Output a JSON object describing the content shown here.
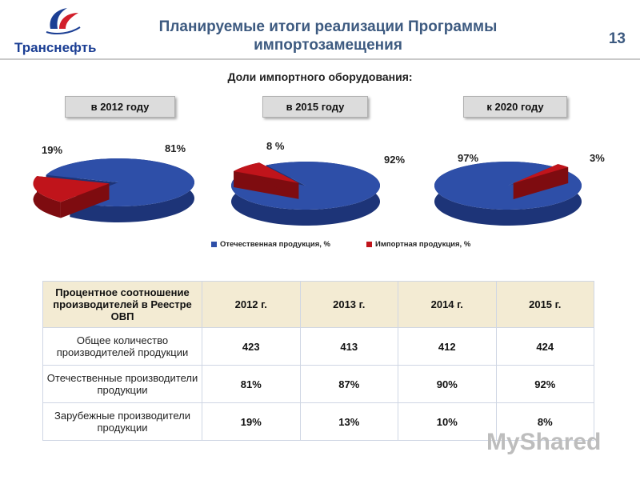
{
  "header": {
    "logo_text": "Транснефть",
    "title": "Планируемые итоги реализации Программы импортозамещения",
    "page_number": "13"
  },
  "subtitle": "Доли импортного оборудования:",
  "colors": {
    "domestic": "#2e4fa8",
    "import": "#c0141b"
  },
  "chart_data": [
    {
      "type": "pie",
      "title": "в 2012 году",
      "labels": [
        "Отечественная продукция, %",
        "Импортная продукция, %"
      ],
      "values": [
        81,
        19
      ],
      "data_labels": [
        "81%",
        "19%"
      ]
    },
    {
      "type": "pie",
      "title": "в 2015 году",
      "labels": [
        "Отечественная продукция, %",
        "Импортная продукция, %"
      ],
      "values": [
        92,
        8
      ],
      "data_labels": [
        "92%",
        "8 %"
      ]
    },
    {
      "type": "pie",
      "title": "к 2020 году",
      "labels": [
        "Отечественная продукция, %",
        "Импортная продукция, %"
      ],
      "values": [
        97,
        3
      ],
      "data_labels": [
        "97%",
        "3%"
      ]
    }
  ],
  "legend": [
    "Отечественная продукция, %",
    "Импортная продукция, %"
  ],
  "table": {
    "header": [
      "Процентное соотношение производителей в Реестре ОВП",
      "2012 г.",
      "2013 г.",
      "2014 г.",
      "2015 г."
    ],
    "rows": [
      {
        "label": "Общее количество производителей продукции",
        "values": [
          "423",
          "413",
          "412",
          "424"
        ]
      },
      {
        "label": "Отечественные производители продукции",
        "values": [
          "81%",
          "87%",
          "90%",
          "92%"
        ]
      },
      {
        "label": "Зарубежные производители продукции",
        "values": [
          "19%",
          "13%",
          "10%",
          "8%"
        ]
      }
    ]
  },
  "watermark": "MyShared"
}
